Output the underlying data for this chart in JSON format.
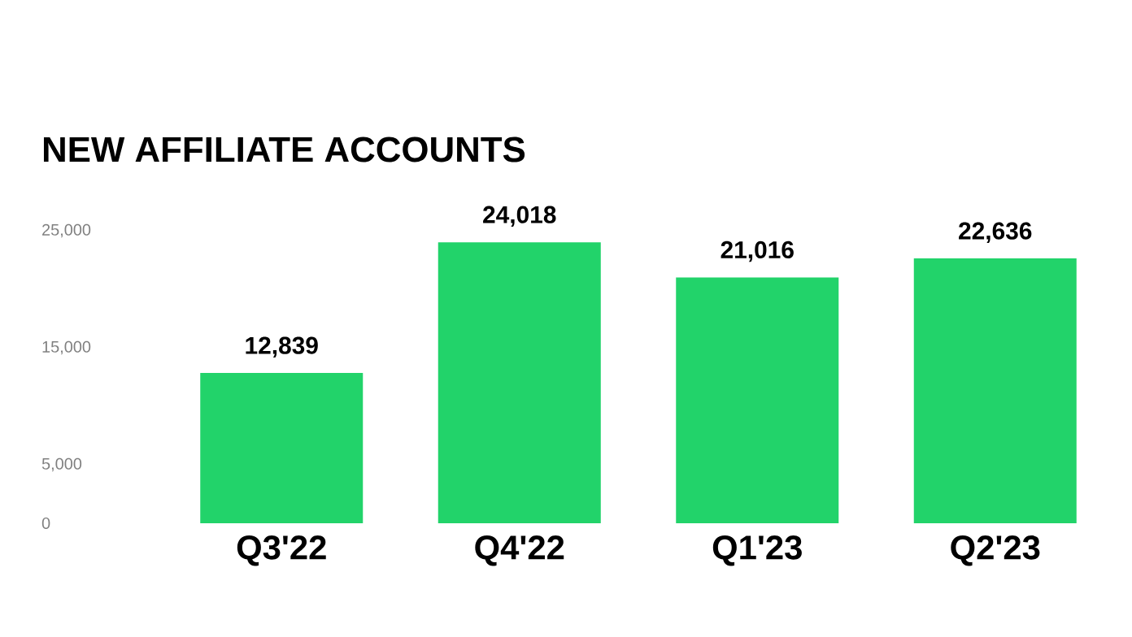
{
  "chart_data": {
    "type": "bar",
    "title": "NEW AFFILIATE ACCOUNTS",
    "categories": [
      "Q3'22",
      "Q4'22",
      "Q1'23",
      "Q2'23"
    ],
    "values": [
      12839,
      24018,
      21016,
      22636
    ],
    "color": "#22d36a",
    "ylim": [
      0,
      25000
    ],
    "yticks": [
      0,
      {
        "value": 5000,
        "label": "5,000"
      },
      {
        "value": 15000,
        "label": "15,000"
      },
      {
        "value": 25000,
        "label": "25,000"
      }
    ],
    "value_labels": [
      "12,839",
      "24,018",
      "21,016",
      "22,636"
    ],
    "grid": false
  }
}
